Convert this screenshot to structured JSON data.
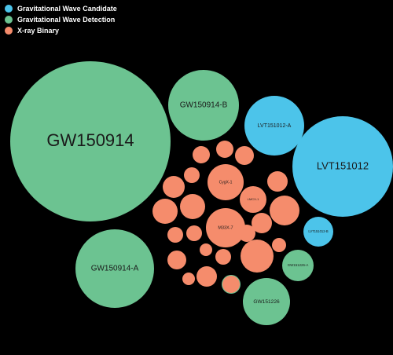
{
  "chart_data": {
    "type": "bubble",
    "legend_position": "top-left",
    "categories": [
      {
        "name": "Gravitational Wave Candidate",
        "color": "#4cc4ea"
      },
      {
        "name": "Gravitational Wave Detection",
        "color": "#6cc391"
      },
      {
        "name": "X-ray Binary",
        "color": "#f58c6c"
      }
    ],
    "bubbles": [
      {
        "label": "GW150914",
        "category": "Gravitational Wave Detection",
        "value": 36
      },
      {
        "label": "GW150914-B",
        "category": "Gravitational Wave Detection",
        "value": 7.5
      },
      {
        "label": "GW150914-A",
        "category": "Gravitational Wave Detection",
        "value": 14.5
      },
      {
        "label": "GW151226",
        "category": "Gravitational Wave Detection",
        "value": 5
      },
      {
        "label": "GW151226-A",
        "category": "Gravitational Wave Detection",
        "value": 1.9
      },
      {
        "label": "",
        "category": "Gravitational Wave Detection",
        "value": 0.5
      },
      {
        "label": "LVT151012-A",
        "category": "Gravitational Wave Candidate",
        "value": 6.2
      },
      {
        "label": "LVT151012",
        "category": "Gravitational Wave Candidate",
        "value": 11.5
      },
      {
        "label": "LVT151012-B",
        "category": "Gravitational Wave Candidate",
        "value": 1.4
      },
      {
        "label": "CygX-1",
        "category": "X-ray Binary",
        "value": 2.4
      },
      {
        "label": "M33X-7",
        "category": "X-ray Binary",
        "value": 3.2
      },
      {
        "label": "LMCX-1",
        "category": "X-ray Binary",
        "value": 1.2
      },
      {
        "label": "",
        "category": "X-ray Binary",
        "value": 0.9
      },
      {
        "label": "",
        "category": "X-ray Binary",
        "value": 0.8
      },
      {
        "label": "",
        "category": "X-ray Binary",
        "value": 0.8
      },
      {
        "label": "",
        "category": "X-ray Binary",
        "value": 0.85
      },
      {
        "label": "",
        "category": "X-ray Binary",
        "value": 0.9
      },
      {
        "label": "",
        "category": "X-ray Binary",
        "value": 1.1
      },
      {
        "label": "",
        "category": "X-ray Binary",
        "value": 1.3
      },
      {
        "label": "",
        "category": "X-ray Binary",
        "value": 0.75
      },
      {
        "label": "",
        "category": "X-ray Binary",
        "value": 0.6
      },
      {
        "label": "",
        "category": "X-ray Binary",
        "value": 0.55
      },
      {
        "label": "",
        "category": "X-ray Binary",
        "value": 0.5
      },
      {
        "label": "",
        "category": "X-ray Binary",
        "value": 0.7
      },
      {
        "label": "",
        "category": "X-ray Binary",
        "value": 0.55
      },
      {
        "label": "",
        "category": "X-ray Binary",
        "value": 0.9
      },
      {
        "label": "",
        "category": "X-ray Binary",
        "value": 1.4
      },
      {
        "label": "",
        "category": "X-ray Binary",
        "value": 0.85
      },
      {
        "label": "",
        "category": "X-ray Binary",
        "value": 0.55
      },
      {
        "label": "",
        "category": "X-ray Binary",
        "value": 0.65
      },
      {
        "label": "",
        "category": "X-ray Binary",
        "value": 0.9
      },
      {
        "label": "",
        "category": "X-ray Binary",
        "value": 0.55
      },
      {
        "label": "",
        "category": "X-ray Binary",
        "value": 0.6
      }
    ]
  }
}
